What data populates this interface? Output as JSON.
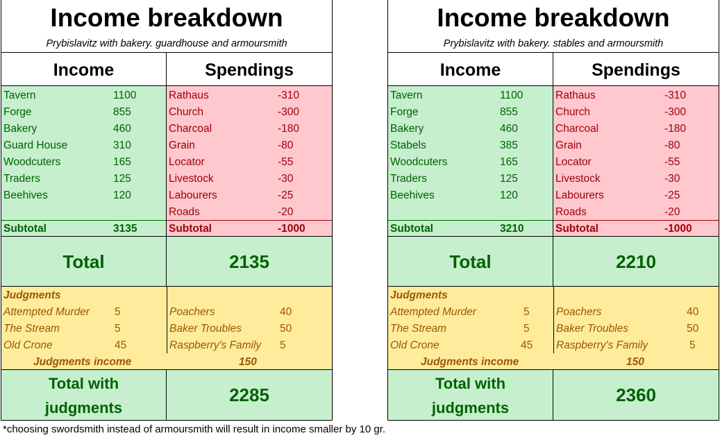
{
  "colors": {
    "income_bg": "#c6efce",
    "income_text": "#006100",
    "spend_bg": "#ffc7ce",
    "spend_text": "#9c0006",
    "judg_bg": "#ffeb9c",
    "judg_text": "#9c5700"
  },
  "sheets": [
    {
      "title": "Income breakdown",
      "subtitle": "Prybislavitz with bakery. guardhouse and armoursmith",
      "income_header": "Income",
      "spend_header": "Spendings",
      "income": [
        {
          "label": "Tavern",
          "value": "1100"
        },
        {
          "label": "Forge",
          "value": "855"
        },
        {
          "label": "Bakery",
          "value": "460"
        },
        {
          "label": "Guard House",
          "value": "310"
        },
        {
          "label": "Woodcuters",
          "value": "165"
        },
        {
          "label": "Traders",
          "value": "125"
        },
        {
          "label": "Beehives",
          "value": "120"
        }
      ],
      "income_subtotal": {
        "label": "Subtotal",
        "value": "3135"
      },
      "spend": [
        {
          "label": "Rathaus",
          "value": "-310"
        },
        {
          "label": "Church",
          "value": "-300"
        },
        {
          "label": "Charcoal",
          "value": "-180"
        },
        {
          "label": "Grain",
          "value": "-80"
        },
        {
          "label": "Locator",
          "value": "-55"
        },
        {
          "label": "Livestock",
          "value": "-30"
        },
        {
          "label": "Labourers",
          "value": "-25"
        },
        {
          "label": "Roads",
          "value": "-20"
        }
      ],
      "spend_subtotal": {
        "label": "Subtotal",
        "value": "-1000"
      },
      "total_label": "Total",
      "total_value": "2135",
      "judg_header": "Judgments",
      "judg_left": [
        {
          "label": "Attempted Murder",
          "value": "5"
        },
        {
          "label": "The Stream",
          "value": "5"
        },
        {
          "label": "Old Crone",
          "value": "45"
        }
      ],
      "judg_right": [
        {
          "label": "Poachers",
          "value": "40"
        },
        {
          "label": "Baker Troubles",
          "value": "50"
        },
        {
          "label": "Raspberry's Family",
          "value": "5"
        }
      ],
      "judg_income_label": "Judgments income",
      "judg_income_value": "150",
      "tj_label_1": "Total with",
      "tj_label_2": "judgments",
      "tj_value": "2285"
    },
    {
      "title": "Income breakdown",
      "subtitle": "Prybislavitz with bakery. stables and armoursmith",
      "income_header": "Income",
      "spend_header": "Spendings",
      "income": [
        {
          "label": "Tavern",
          "value": "1100"
        },
        {
          "label": "Forge",
          "value": "855"
        },
        {
          "label": "Bakery",
          "value": "460"
        },
        {
          "label": "Stabels",
          "value": "385"
        },
        {
          "label": "Woodcuters",
          "value": "165"
        },
        {
          "label": "Traders",
          "value": "125"
        },
        {
          "label": "Beehives",
          "value": "120"
        }
      ],
      "income_subtotal": {
        "label": "Subtotal",
        "value": "3210"
      },
      "spend": [
        {
          "label": "Rathaus",
          "value": "-310"
        },
        {
          "label": "Church",
          "value": "-300"
        },
        {
          "label": "Charcoal",
          "value": "-180"
        },
        {
          "label": "Grain",
          "value": "-80"
        },
        {
          "label": "Locator",
          "value": "-55"
        },
        {
          "label": "Livestock",
          "value": "-30"
        },
        {
          "label": "Labourers",
          "value": "-25"
        },
        {
          "label": "Roads",
          "value": "-20"
        }
      ],
      "spend_subtotal": {
        "label": "Subtotal",
        "value": "-1000"
      },
      "total_label": "Total",
      "total_value": "2210",
      "judg_header": "Judgments",
      "judg_left": [
        {
          "label": "Attempted Murder",
          "value": "5"
        },
        {
          "label": "The Stream",
          "value": "5"
        },
        {
          "label": "Old Crone",
          "value": "45"
        }
      ],
      "judg_right": [
        {
          "label": "Poachers",
          "value": "40"
        },
        {
          "label": "Baker Troubles",
          "value": "50"
        },
        {
          "label": "Raspberry's Family",
          "value": "5"
        }
      ],
      "judg_income_label": "Judgments income",
      "judg_income_value": "150",
      "tj_label_1": "Total with",
      "tj_label_2": "judgments",
      "tj_value": "2360"
    }
  ],
  "footnote": "*choosing swordsmith instead of armoursmith will result in income smaller by 10 gr."
}
